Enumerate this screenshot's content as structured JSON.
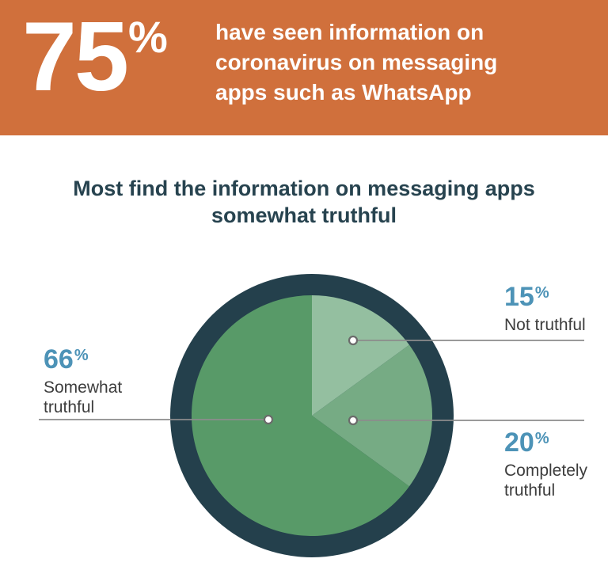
{
  "header": {
    "stat_value": "75",
    "stat_unit": "%",
    "text": "have seen information on coronavirus on messaging apps such as WhatsApp",
    "background_color": "#d0703c",
    "text_color": "#ffffff"
  },
  "title": "Most find the information on messaging apps somewhat truthful",
  "percent_sign": "%",
  "chart_data": {
    "type": "pie",
    "title": "Most find the information on messaging apps somewhat truthful",
    "segments": [
      {
        "label": "Not truthful",
        "value": 15,
        "color": "#94bfa0"
      },
      {
        "label": "Completely truthful",
        "value": 20,
        "color": "#76ab84"
      },
      {
        "label": "Somewhat truthful",
        "value": 66,
        "color": "#589a68"
      }
    ],
    "start_angle_deg": 0,
    "direction": "clockwise",
    "ring_color": "#24404c",
    "accent_color": "#4d93b7",
    "label_text_color": "#3d3d3d",
    "legend_position": "callouts"
  }
}
